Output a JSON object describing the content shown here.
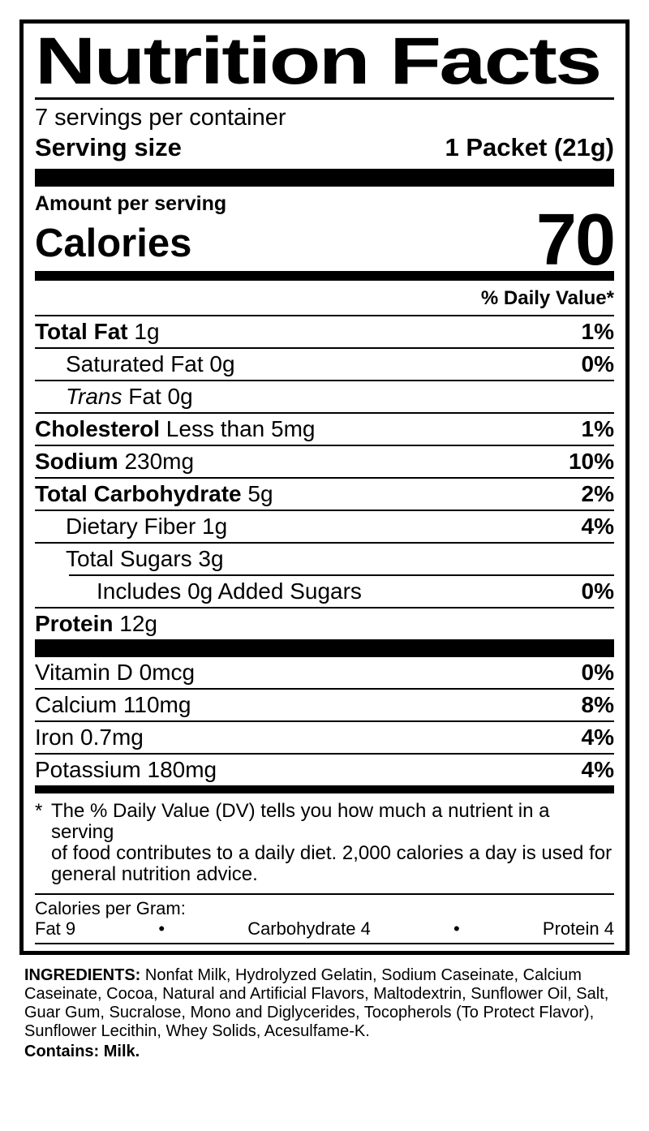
{
  "label": {
    "title": "Nutrition Facts",
    "servings_per_container": "7 servings per container",
    "serving_size_label": "Serving size",
    "serving_size_value": "1 Packet (21g)",
    "amount_per_serving": "Amount per serving",
    "calories_label": "Calories",
    "calories_value": "70",
    "daily_value_header": "% Daily Value*",
    "rows": [
      {
        "bold": "Total Fat",
        "regular": " 1g",
        "dv": "1%"
      },
      {
        "bold": "",
        "regular": "Saturated Fat 0g",
        "dv": "0%"
      },
      {
        "italic": "Trans",
        "regular": " Fat 0g",
        "dv": ""
      },
      {
        "bold": "Cholesterol",
        "regular": " Less than 5mg",
        "dv": "1%"
      },
      {
        "bold": "Sodium",
        "regular": " 230mg",
        "dv": "10%"
      },
      {
        "bold": "Total Carbohydrate",
        "regular": " 5g",
        "dv": "2%"
      },
      {
        "bold": "",
        "regular": "Dietary Fiber 1g",
        "dv": "4%"
      },
      {
        "bold": "",
        "regular": "Total Sugars 3g",
        "dv": ""
      },
      {
        "bold": "",
        "regular": "Includes 0g Added Sugars",
        "dv": "0%"
      },
      {
        "bold": "Protein",
        "regular": " 12g",
        "dv": ""
      }
    ],
    "vitamins": [
      {
        "regular": "Vitamin D 0mcg",
        "dv": "0%"
      },
      {
        "regular": "Calcium 110mg",
        "dv": "8%"
      },
      {
        "regular": "Iron 0.7mg",
        "dv": "4%"
      },
      {
        "regular": "Potassium 180mg",
        "dv": "4%"
      }
    ],
    "footnote": {
      "marker": "*",
      "line1": "The % Daily Value (DV) tells you how much a nutrient in a serving",
      "line2": "of food contributes to a daily diet. 2,000 calories a day is used for",
      "line3": "general nutrition advice."
    },
    "calories_per_gram": {
      "heading": "Calories per Gram:",
      "fat": "Fat 9",
      "bullet": "•",
      "carbohydrate": "Carbohydrate 4",
      "protein": "Protein 4"
    }
  },
  "ingredients": {
    "label": "INGREDIENTS:",
    "text": " Nonfat Milk, Hydrolyzed Gelatin, Sodium Caseinate, Calcium Caseinate, Cocoa, Natural and Artificial Flavors, Maltodextrin, Sunflower Oil, Salt, Guar Gum, Sucralose, Mono and Diglycerides, Tocopherols (To Protect Flavor), Sunflower Lecithin, Whey Solids, Acesulfame-K.",
    "contains": "Contains: Milk."
  }
}
